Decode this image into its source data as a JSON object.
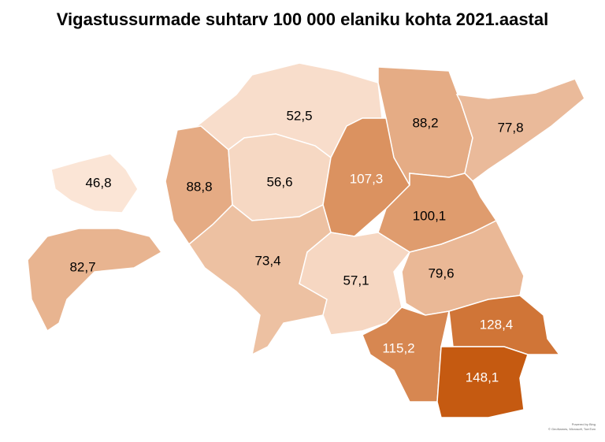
{
  "chart_data": {
    "type": "choropleth",
    "title": "Vigastussurmade suhtarv 100 000 elaniku kohta 2021.aastal",
    "values": [
      52.5,
      88.2,
      77.8,
      46.8,
      88.8,
      56.6,
      107.3,
      100.1,
      82.7,
      73.4,
      57.1,
      79.6,
      115.2,
      128.4,
      148.1
    ],
    "value_labels": [
      "52,5",
      "88,2",
      "77,8",
      "46,8",
      "88,8",
      "56,6",
      "107,3",
      "100,1",
      "82,7",
      "73,4",
      "57,1",
      "79,6",
      "115,2",
      "128,4",
      "148,1"
    ],
    "color_scale": [
      "#fbe5d6",
      "#c55a11"
    ],
    "credits": [
      "Powered by Bing",
      "© GeoNames, Microsoft, TomTom"
    ]
  }
}
